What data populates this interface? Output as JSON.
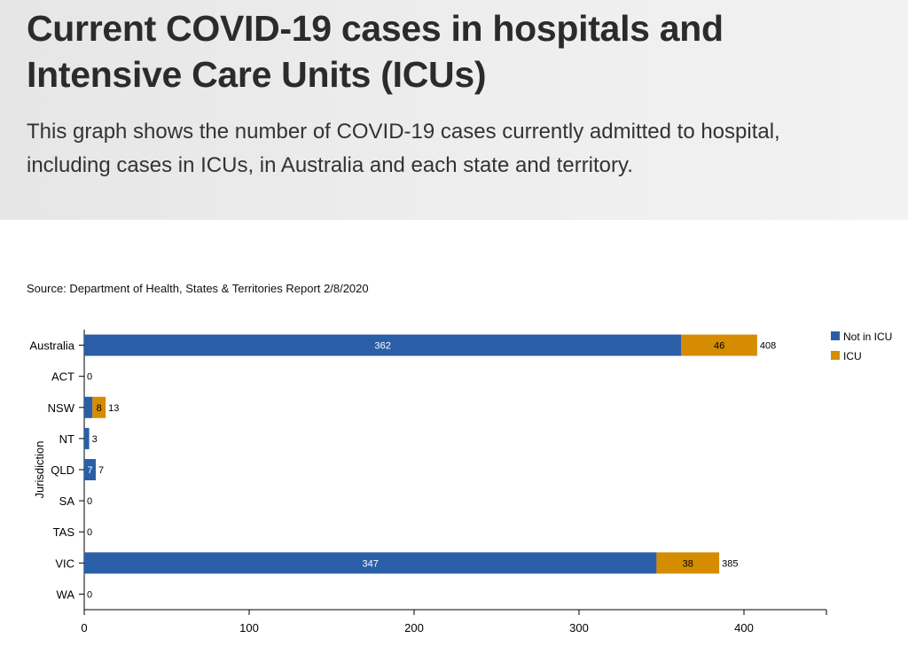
{
  "header": {
    "title": "Current COVID-19 cases in hospitals and Intensive Care Units (ICUs)",
    "subtitle": "This graph shows the number of COVID-19 cases currently admitted to hospital, including cases in ICUs, in Australia and each state and territory."
  },
  "source": "Source: Department of Health, States & Territories Report 2/8/2020",
  "colors": {
    "not_in_icu": "#2a5fa8",
    "icu": "#d68c00",
    "header_bg": "#eaeaea"
  },
  "chart_data": {
    "type": "bar",
    "orientation": "horizontal",
    "stacked": true,
    "categories": [
      "Australia",
      "ACT",
      "NSW",
      "NT",
      "QLD",
      "SA",
      "TAS",
      "VIC",
      "WA"
    ],
    "series": [
      {
        "name": "Not in ICU",
        "values": [
          362,
          0,
          5,
          3,
          7,
          0,
          0,
          347,
          0
        ],
        "color": "#2a5fa8"
      },
      {
        "name": "ICU",
        "values": [
          46,
          0,
          8,
          0,
          0,
          0,
          0,
          38,
          0
        ],
        "color": "#d68c00"
      }
    ],
    "totals": [
      408,
      0,
      13,
      3,
      7,
      0,
      0,
      385,
      0
    ],
    "segment_labels": {
      "Not in ICU": [
        "362",
        "",
        "",
        "",
        "7",
        "",
        "",
        "347",
        ""
      ],
      "ICU": [
        "46",
        "",
        "8",
        "",
        "",
        "",
        "",
        "38",
        ""
      ]
    },
    "xlabel": "",
    "ylabel": "Jurisdiction",
    "xticks": [
      0,
      100,
      200,
      300,
      400
    ],
    "xlim": [
      0,
      450
    ],
    "grid": false,
    "legend": "top-right"
  }
}
